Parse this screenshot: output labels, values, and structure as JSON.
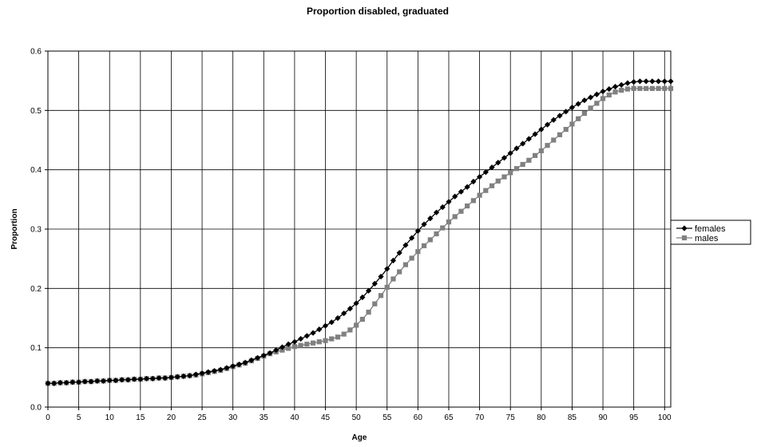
{
  "chart_data": {
    "type": "line",
    "title": "Proportion disabled, graduated",
    "xlabel": "Age",
    "ylabel": "Proportion",
    "xlim": [
      0,
      101
    ],
    "ylim": [
      0,
      0.6
    ],
    "x_ticks": [
      0,
      5,
      10,
      15,
      20,
      25,
      30,
      35,
      40,
      45,
      50,
      55,
      60,
      65,
      70,
      75,
      80,
      85,
      90,
      95,
      100
    ],
    "y_ticks": [
      0.0,
      0.1,
      0.2,
      0.3,
      0.4,
      0.5,
      0.6
    ],
    "y_tick_labels": [
      "0.0",
      "0.1",
      "0.2",
      "0.3",
      "0.4",
      "0.5",
      "0.6"
    ],
    "grid": true,
    "legend_position": "right",
    "x": [
      0,
      1,
      2,
      3,
      4,
      5,
      6,
      7,
      8,
      9,
      10,
      11,
      12,
      13,
      14,
      15,
      16,
      17,
      18,
      19,
      20,
      21,
      22,
      23,
      24,
      25,
      26,
      27,
      28,
      29,
      30,
      31,
      32,
      33,
      34,
      35,
      36,
      37,
      38,
      39,
      40,
      41,
      42,
      43,
      44,
      45,
      46,
      47,
      48,
      49,
      50,
      51,
      52,
      53,
      54,
      55,
      56,
      57,
      58,
      59,
      60,
      61,
      62,
      63,
      64,
      65,
      66,
      67,
      68,
      69,
      70,
      71,
      72,
      73,
      74,
      75,
      76,
      77,
      78,
      79,
      80,
      81,
      82,
      83,
      84,
      85,
      86,
      87,
      88,
      89,
      90,
      91,
      92,
      93,
      94,
      95,
      96,
      97,
      98,
      99,
      100,
      101
    ],
    "series": [
      {
        "name": "females",
        "color": "#000000",
        "marker": "diamond",
        "values": [
          0.04,
          0.04,
          0.041,
          0.041,
          0.042,
          0.042,
          0.043,
          0.043,
          0.044,
          0.044,
          0.045,
          0.045,
          0.046,
          0.046,
          0.047,
          0.047,
          0.048,
          0.048,
          0.049,
          0.049,
          0.05,
          0.051,
          0.052,
          0.053,
          0.055,
          0.057,
          0.059,
          0.061,
          0.063,
          0.066,
          0.069,
          0.072,
          0.075,
          0.079,
          0.083,
          0.087,
          0.091,
          0.096,
          0.101,
          0.106,
          0.11,
          0.115,
          0.12,
          0.125,
          0.131,
          0.137,
          0.143,
          0.15,
          0.158,
          0.166,
          0.175,
          0.185,
          0.196,
          0.208,
          0.22,
          0.233,
          0.247,
          0.26,
          0.273,
          0.285,
          0.297,
          0.308,
          0.318,
          0.328,
          0.337,
          0.346,
          0.355,
          0.363,
          0.371,
          0.38,
          0.388,
          0.396,
          0.404,
          0.412,
          0.42,
          0.428,
          0.436,
          0.444,
          0.452,
          0.46,
          0.468,
          0.476,
          0.484,
          0.491,
          0.498,
          0.505,
          0.511,
          0.517,
          0.522,
          0.527,
          0.532,
          0.536,
          0.54,
          0.543,
          0.546,
          0.548,
          0.549,
          0.549,
          0.549,
          0.549,
          0.549,
          0.549
        ]
      },
      {
        "name": "males",
        "color": "#808080",
        "marker": "square",
        "values": [
          0.04,
          0.04,
          0.041,
          0.041,
          0.042,
          0.042,
          0.043,
          0.043,
          0.044,
          0.044,
          0.045,
          0.045,
          0.046,
          0.046,
          0.047,
          0.047,
          0.048,
          0.048,
          0.049,
          0.049,
          0.05,
          0.051,
          0.052,
          0.053,
          0.054,
          0.056,
          0.058,
          0.06,
          0.062,
          0.065,
          0.068,
          0.071,
          0.074,
          0.078,
          0.082,
          0.086,
          0.09,
          0.093,
          0.096,
          0.099,
          0.102,
          0.104,
          0.106,
          0.108,
          0.11,
          0.112,
          0.115,
          0.118,
          0.123,
          0.13,
          0.138,
          0.148,
          0.16,
          0.174,
          0.188,
          0.202,
          0.216,
          0.228,
          0.24,
          0.251,
          0.262,
          0.272,
          0.282,
          0.292,
          0.302,
          0.312,
          0.321,
          0.33,
          0.339,
          0.348,
          0.357,
          0.365,
          0.373,
          0.381,
          0.388,
          0.395,
          0.402,
          0.409,
          0.416,
          0.424,
          0.432,
          0.441,
          0.45,
          0.459,
          0.468,
          0.477,
          0.486,
          0.495,
          0.504,
          0.512,
          0.52,
          0.526,
          0.531,
          0.534,
          0.536,
          0.537,
          0.537,
          0.537,
          0.537,
          0.537,
          0.537,
          0.537
        ]
      }
    ]
  }
}
